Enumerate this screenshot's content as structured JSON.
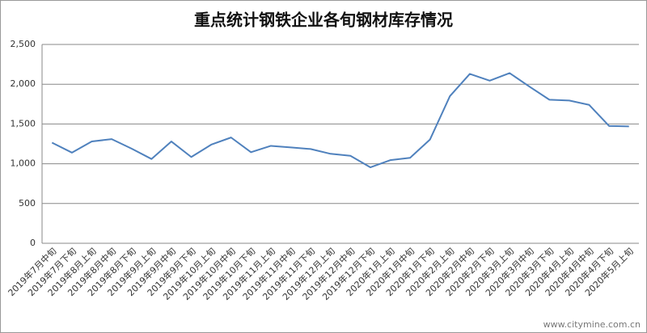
{
  "chart_data": {
    "type": "line",
    "title": "重点统计钢铁企业各旬钢材库存情况",
    "categories": [
      "2019年7月中旬",
      "2019年7月下旬",
      "2019年8月上旬",
      "2019年8月中旬",
      "2019年8月下旬",
      "2019年9月上旬",
      "2019年9月中旬",
      "2019年9月下旬",
      "2019年10月上旬",
      "2019年10月中旬",
      "2019年10月下旬",
      "2019年11月上旬",
      "2019年11月中旬",
      "2019年11月下旬",
      "2019年12月上旬",
      "2019年12月中旬",
      "2019年12月下旬",
      "2020年1月上旬",
      "2020年1月中旬",
      "2020年1月下旬",
      "2020年2月上旬",
      "2020年2月中旬",
      "2020年2月下旬",
      "2020年3月上旬",
      "2020年3月中旬",
      "2020年3月下旬",
      "2020年4月上旬",
      "2020年4月中旬",
      "2020年4月下旬",
      "2020年5月上旬"
    ],
    "values": [
      1265,
      1140,
      1280,
      1310,
      1190,
      1060,
      1280,
      1085,
      1240,
      1330,
      1145,
      1225,
      1205,
      1185,
      1125,
      1100,
      955,
      1045,
      1075,
      1305,
      1850,
      2130,
      2045,
      2140,
      1970,
      1805,
      1795,
      1740,
      1475,
      1470
    ],
    "color": "#4f81bd",
    "ylim": [
      0,
      2500
    ],
    "yticks": [
      0,
      500,
      {
        "value": 1000,
        "label": "1,000"
      },
      {
        "value": 1500,
        "label": "1,500"
      },
      {
        "value": 2000,
        "label": "2,000"
      },
      {
        "value": 2500,
        "label": "2,500"
      }
    ],
    "grid": true,
    "watermark": "www.citymine.com.cn"
  }
}
